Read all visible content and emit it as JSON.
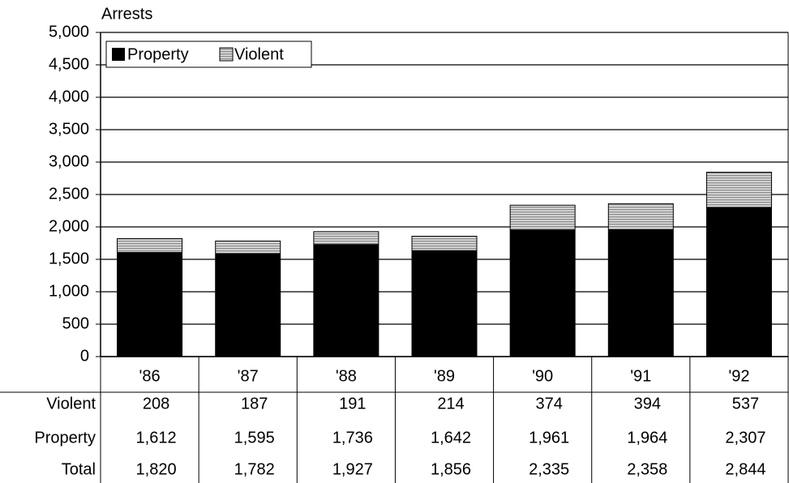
{
  "chart_data": {
    "type": "stacked_bar",
    "y_label": "Arrests",
    "categories": [
      "'86",
      "'87",
      "'88",
      "'89",
      "'90",
      "'91",
      "'92"
    ],
    "series": [
      {
        "name": "Property",
        "color": "#000000",
        "values": [
          1612,
          1595,
          1736,
          1642,
          1961,
          1964,
          2307
        ],
        "value_labels": [
          "1,612",
          "1,595",
          "1,736",
          "1,642",
          "1,961",
          "1,964",
          "2,307"
        ]
      },
      {
        "name": "Violent",
        "color": "#8a8a8a",
        "values": [
          208,
          187,
          191,
          214,
          374,
          394,
          537
        ]
      }
    ],
    "total": {
      "name": "Total",
      "values": [
        1820,
        1782,
        1927,
        1856,
        2335,
        2358,
        2844
      ],
      "value_labels": [
        "1,820",
        "1,782",
        "1,927",
        "1,856",
        "2,335",
        "2,358",
        "2,844"
      ]
    },
    "ylim": [
      0,
      5000
    ],
    "yticks": [
      0,
      500,
      {
        "value": 1000,
        "label": "1,000"
      },
      {
        "value": 1500,
        "label": "1,500"
      },
      {
        "value": 2000,
        "label": "2,000"
      },
      {
        "value": 2500,
        "label": "2,500"
      },
      {
        "value": 3000,
        "label": "3,000"
      },
      {
        "value": 3500,
        "label": "3,500"
      },
      {
        "value": 4000,
        "label": "4,000"
      },
      {
        "value": 4500,
        "label": "4,500"
      },
      {
        "value": 5000,
        "label": "5,000"
      }
    ],
    "grid": true,
    "legend": "top-left"
  }
}
